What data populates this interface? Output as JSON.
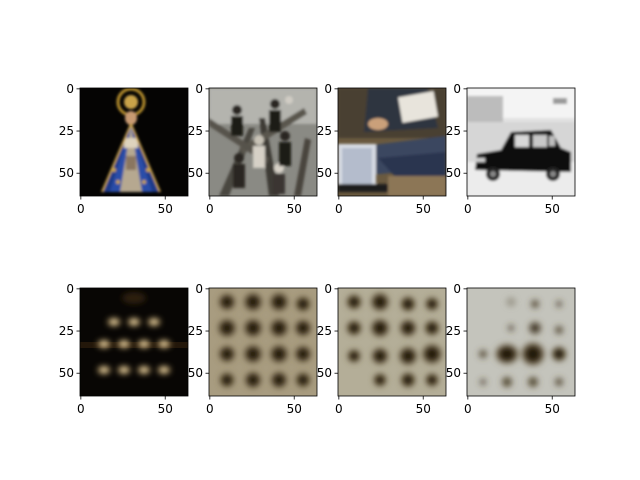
{
  "figure": {
    "grid": "2x4",
    "rows": [
      {
        "role": "input images",
        "panels": [
          {
            "content": "religious statue with blue mantle and golden crown on black background"
          },
          {
            "content": "group of people among tree branches, grayscale"
          },
          {
            "content": "person sitting cross-legged with a laptop and papers"
          },
          {
            "content": "black taxi car on a street, grayscale"
          }
        ]
      },
      {
        "role": "reconstructions",
        "panels": [
          {
            "content": "dark blurry grid of bright blobs"
          },
          {
            "content": "light background with dark blurry blob grid"
          },
          {
            "content": "light background with dark blurry blob grid"
          },
          {
            "content": "light background with dark blob cluster at lower middle"
          }
        ]
      }
    ],
    "axes": {
      "x_ticks": [
        "0",
        "50"
      ],
      "y_ticks": [
        "0",
        "25",
        "50"
      ]
    }
  }
}
